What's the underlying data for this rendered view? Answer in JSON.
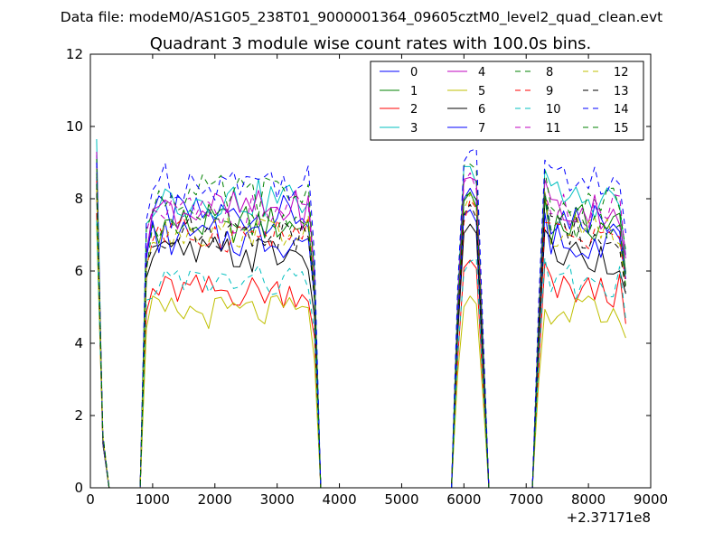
{
  "figure": {
    "suptitle": "Data file: modeM0/AS1G05_238T01_9000001364_09605cztM0_level2_quad_clean.evt"
  },
  "chart_data": {
    "type": "line",
    "title": "Quadrant 3 module wise count rates with 100.0s bins.",
    "xlabel": "",
    "ylabel": "",
    "x_offset_label": "+2.37171e8",
    "xlim": [
      0,
      9000
    ],
    "ylim": [
      0,
      12
    ],
    "xticks": [
      0,
      1000,
      2000,
      3000,
      4000,
      5000,
      6000,
      7000,
      8000,
      9000
    ],
    "yticks": [
      0,
      2,
      4,
      6,
      8,
      10,
      12
    ],
    "grid": false,
    "legend_position": "top-right",
    "legend_columns": 4,
    "x": [
      100,
      200,
      300,
      400,
      500,
      600,
      700,
      800,
      900,
      1000,
      1100,
      1200,
      1300,
      1400,
      1500,
      1600,
      1700,
      1800,
      1900,
      2000,
      2100,
      2200,
      2300,
      2400,
      2500,
      2600,
      2700,
      2800,
      2900,
      3000,
      3100,
      3200,
      3300,
      3400,
      3500,
      3600,
      3700,
      3800,
      3900,
      4000,
      4100,
      4200,
      4300,
      4400,
      4500,
      4600,
      4700,
      4800,
      4900,
      5000,
      5100,
      5200,
      5300,
      5400,
      5500,
      5600,
      5700,
      5800,
      5900,
      6000,
      6100,
      6200,
      6300,
      6400,
      6500,
      6600,
      6700,
      6800,
      6900,
      7000,
      7100,
      7200,
      7300,
      7400,
      7500,
      7600,
      7700,
      7800,
      7900,
      8000,
      8100,
      8200,
      8300,
      8400,
      8500,
      8600
    ],
    "segments": [
      [
        100,
        300
      ],
      [
        800,
        3700
      ],
      [
        5800,
        6400
      ],
      [
        7100,
        8600
      ]
    ],
    "series": [
      {
        "name": "0",
        "color": "#0000ff",
        "dash": "solid",
        "level": 7.55,
        "amp": 0.35,
        "start": 9.2
      },
      {
        "name": "1",
        "color": "#008000",
        "dash": "solid",
        "level": 7.3,
        "amp": 0.35,
        "start": 8.9
      },
      {
        "name": "2",
        "color": "#ff0000",
        "dash": "solid",
        "level": 5.45,
        "amp": 0.3,
        "start": 7.6
      },
      {
        "name": "3",
        "color": "#00bfbf",
        "dash": "solid",
        "level": 8.0,
        "amp": 0.35,
        "start": 9.65
      },
      {
        "name": "4",
        "color": "#bf00bf",
        "dash": "solid",
        "level": 7.7,
        "amp": 0.35,
        "start": 9.3
      },
      {
        "name": "5",
        "color": "#bfbf00",
        "dash": "solid",
        "level": 4.85,
        "amp": 0.3,
        "start": 7.3
      },
      {
        "name": "6",
        "color": "#000000",
        "dash": "solid",
        "level": 6.45,
        "amp": 0.35,
        "start": 8.2
      },
      {
        "name": "7",
        "color": "#0000ff",
        "dash": "solid",
        "level": 6.9,
        "amp": 0.35,
        "start": 8.6
      },
      {
        "name": "8",
        "color": "#008000",
        "dash": "dashed",
        "level": 8.1,
        "amp": 0.35,
        "start": 9.1
      },
      {
        "name": "9",
        "color": "#ff0000",
        "dash": "dashed",
        "level": 7.0,
        "amp": 0.3,
        "start": 8.5
      },
      {
        "name": "10",
        "color": "#00bfbf",
        "dash": "dashed",
        "level": 5.7,
        "amp": 0.3,
        "start": 7.4
      },
      {
        "name": "11",
        "color": "#bf00bf",
        "dash": "dashed",
        "level": 7.6,
        "amp": 0.35,
        "start": 9.0
      },
      {
        "name": "12",
        "color": "#bfbf00",
        "dash": "dashed",
        "level": 7.1,
        "amp": 0.3,
        "start": 8.3
      },
      {
        "name": "13",
        "color": "#000000",
        "dash": "dashed",
        "level": 7.05,
        "amp": 0.3,
        "start": 8.4
      },
      {
        "name": "14",
        "color": "#0000ff",
        "dash": "dashed",
        "level": 8.5,
        "amp": 0.35,
        "start": 9.0
      },
      {
        "name": "15",
        "color": "#008000",
        "dash": "dashed",
        "level": 7.25,
        "amp": 0.3,
        "start": 8.7
      }
    ]
  }
}
